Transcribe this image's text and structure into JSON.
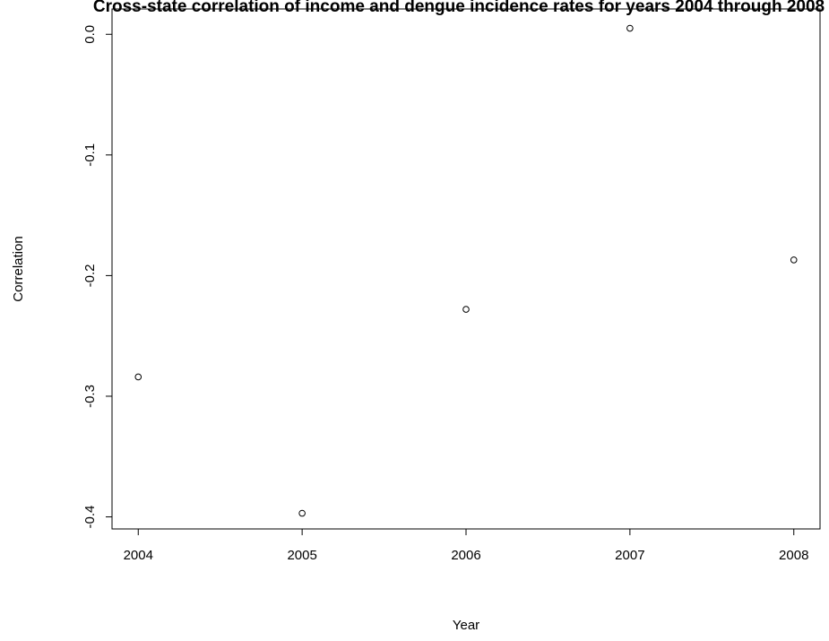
{
  "chart_data": {
    "type": "scatter",
    "title": "Cross-state correlation of income and dengue incidence rates for years 2004 through 2008",
    "xlabel": "Year",
    "ylabel": "Correlation",
    "x": [
      2004,
      2005,
      2006,
      2007,
      2008
    ],
    "y": [
      -0.284,
      -0.397,
      -0.228,
      0.005,
      -0.187
    ],
    "x_ticks": [
      2004,
      2005,
      2006,
      2007,
      2008
    ],
    "x_tick_labels": [
      "2004",
      "2005",
      "2006",
      "2007",
      "2008"
    ],
    "y_ticks": [
      0.0,
      -0.1,
      -0.2,
      -0.3,
      -0.4
    ],
    "y_tick_labels": [
      "0.0",
      "-0.1",
      "-0.2",
      "-0.3",
      "-0.4"
    ],
    "xlim": [
      2003.84,
      2008.16
    ],
    "ylim": [
      -0.41,
      0.021
    ],
    "grid": false,
    "legend": "none",
    "marker": "open-circle",
    "colors": {
      "points": "#000000",
      "axes": "#000000",
      "background": "#ffffff"
    }
  }
}
